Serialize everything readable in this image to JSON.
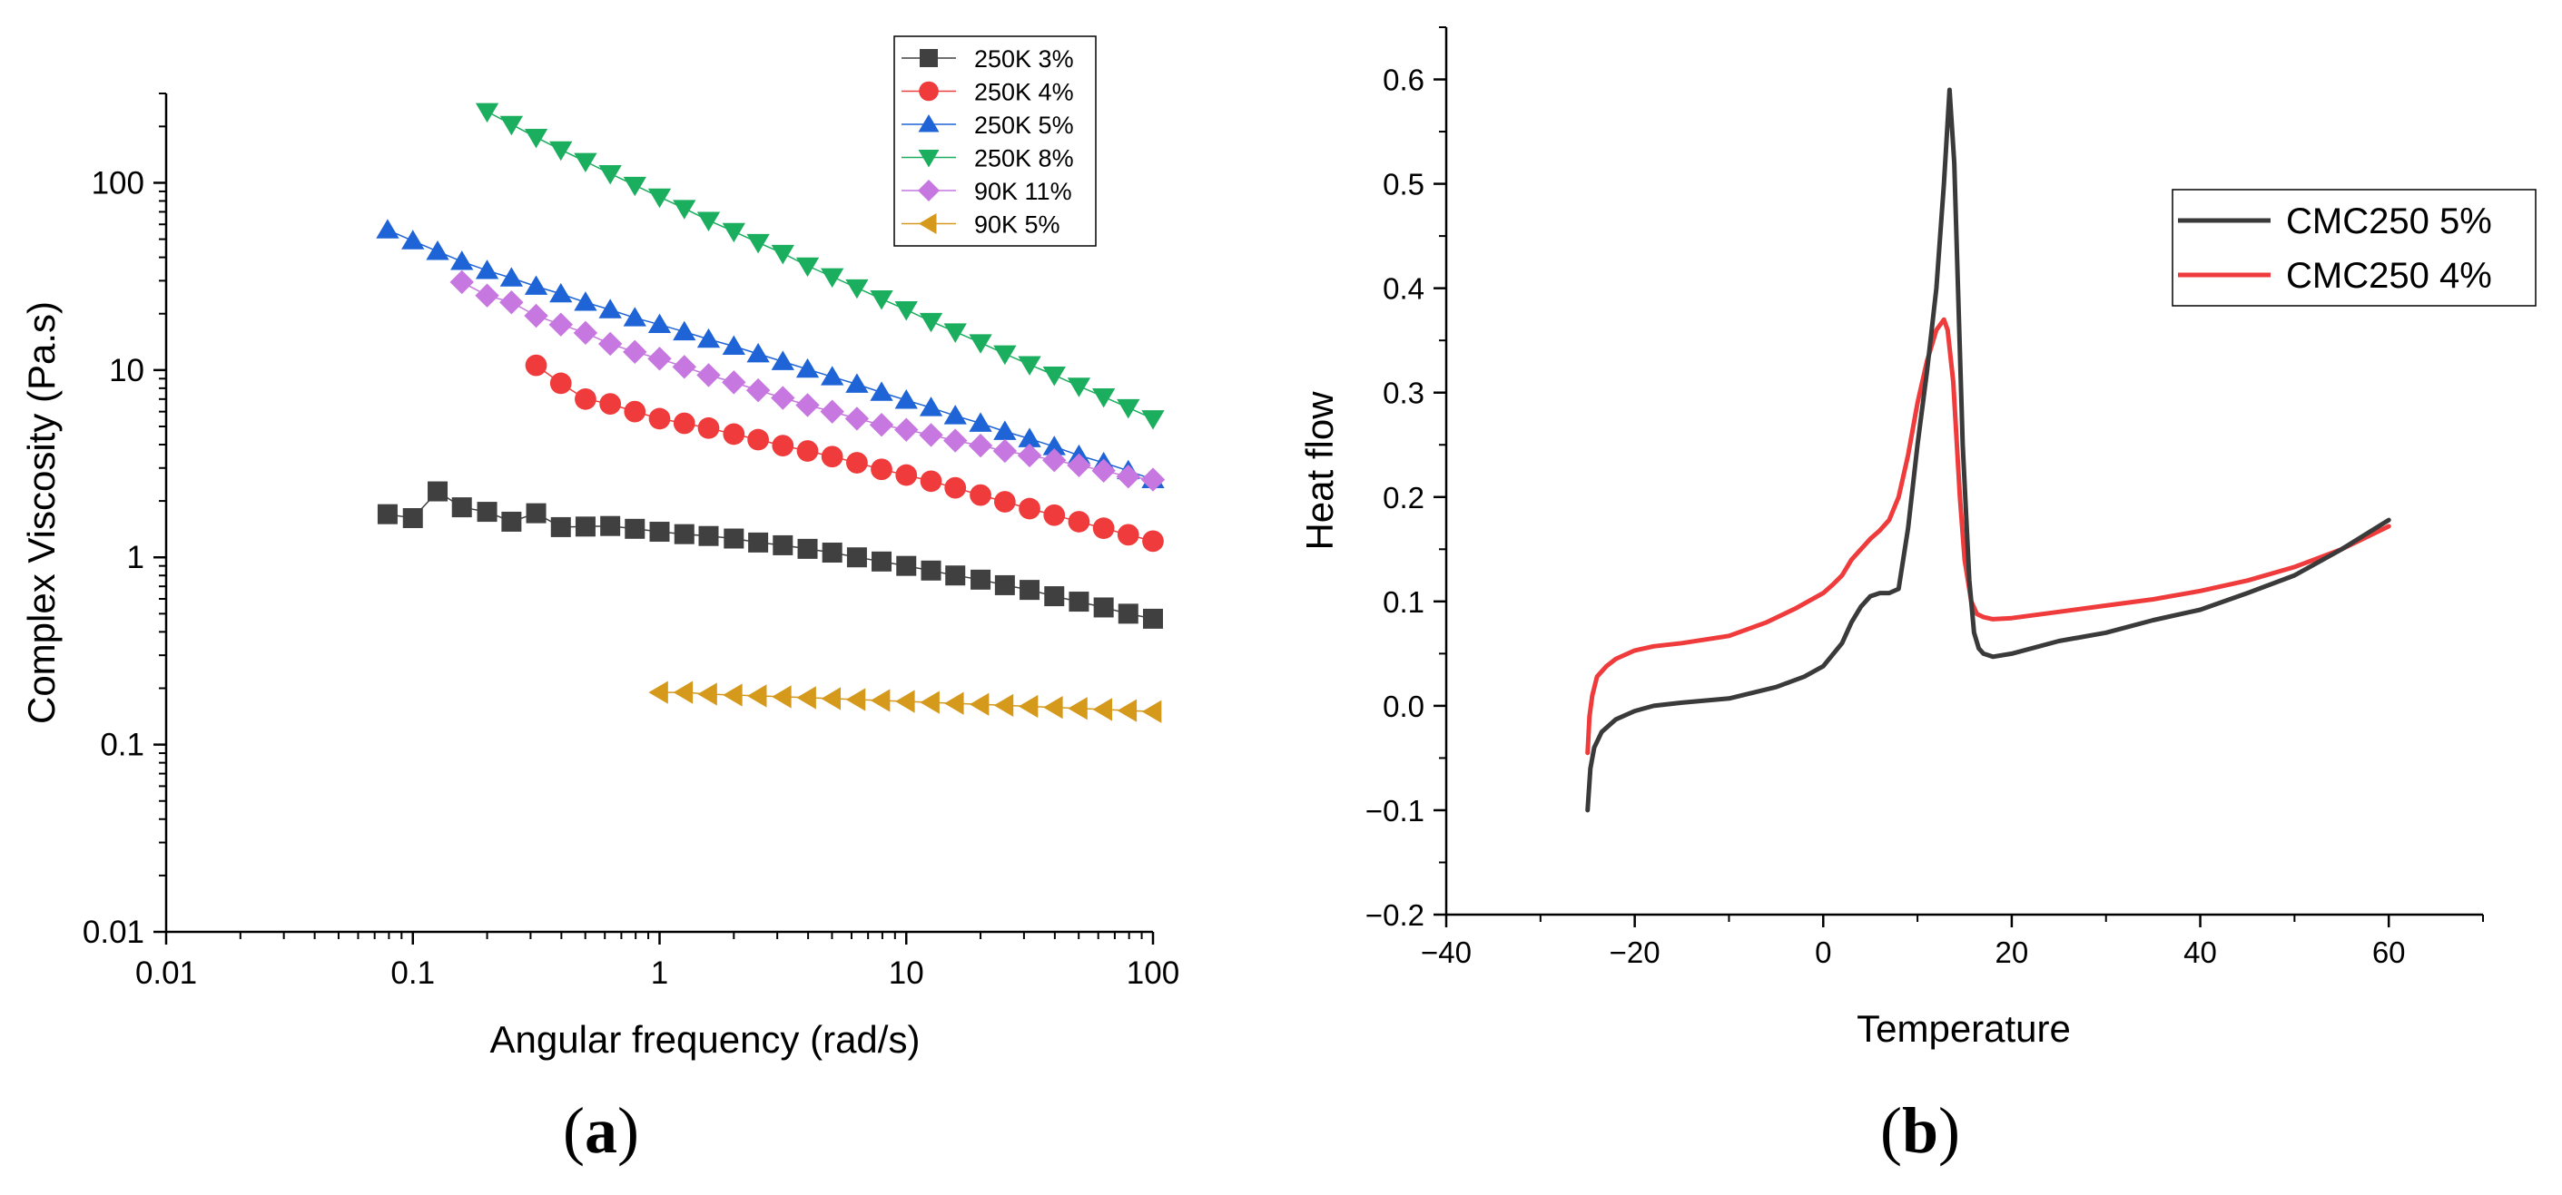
{
  "figure": {
    "label_a": "a",
    "label_b": "b"
  },
  "chart_data": [
    {
      "type": "scatter",
      "panel": "a",
      "xlabel": "Angular frequency (rad/s)",
      "ylabel": "Complex Viscosity (Pa.s)",
      "xscale": "log",
      "yscale": "log",
      "xlim": [
        0.01,
        100
      ],
      "ylim": [
        0.01,
        300
      ],
      "xticks": [
        {
          "v": 0.01,
          "label": "0.01"
        },
        {
          "v": 0.1,
          "label": "0.1"
        },
        {
          "v": 1,
          "label": "1"
        },
        {
          "v": 10,
          "label": "10"
        },
        {
          "v": 100,
          "label": "100"
        }
      ],
      "yticks": [
        {
          "v": 0.01,
          "label": "0.01"
        },
        {
          "v": 0.1,
          "label": "0.1"
        },
        {
          "v": 1,
          "label": "1"
        },
        {
          "v": 10,
          "label": "10"
        },
        {
          "v": 100,
          "label": "100"
        }
      ],
      "legend_position": "top-right",
      "series": [
        {
          "name": "250K 3%",
          "color": "#404040",
          "marker": "square",
          "x": [
            0.079,
            0.1,
            0.126,
            0.158,
            0.2,
            0.251,
            0.316,
            0.398,
            0.501,
            0.631,
            0.794,
            1,
            1.26,
            1.58,
            2,
            2.51,
            3.16,
            3.98,
            5.01,
            6.31,
            7.94,
            10,
            12.6,
            15.8,
            20,
            25.1,
            31.6,
            39.8,
            50.1,
            63.1,
            79.4,
            100
          ],
          "y": [
            1.7,
            1.62,
            2.25,
            1.85,
            1.75,
            1.55,
            1.72,
            1.45,
            1.46,
            1.47,
            1.42,
            1.37,
            1.33,
            1.3,
            1.26,
            1.2,
            1.16,
            1.11,
            1.06,
            1.0,
            0.95,
            0.9,
            0.85,
            0.8,
            0.76,
            0.71,
            0.67,
            0.62,
            0.58,
            0.54,
            0.5,
            0.47
          ]
        },
        {
          "name": "250K 4%",
          "color": "#ef3b3b",
          "marker": "circle",
          "x": [
            0.316,
            0.398,
            0.501,
            0.631,
            0.794,
            1,
            1.26,
            1.58,
            2,
            2.51,
            3.16,
            3.98,
            5.01,
            6.31,
            7.94,
            10,
            12.6,
            15.8,
            20,
            25.1,
            31.6,
            39.8,
            50.1,
            63.1,
            79.4,
            100
          ],
          "y": [
            10.6,
            8.5,
            7.0,
            6.6,
            6.0,
            5.5,
            5.2,
            4.9,
            4.55,
            4.25,
            3.95,
            3.7,
            3.45,
            3.2,
            2.95,
            2.75,
            2.55,
            2.35,
            2.15,
            1.98,
            1.82,
            1.68,
            1.55,
            1.43,
            1.32,
            1.22
          ]
        },
        {
          "name": "250K 5%",
          "color": "#1f64d6",
          "marker": "triangle-up",
          "x": [
            0.079,
            0.1,
            0.126,
            0.158,
            0.2,
            0.251,
            0.316,
            0.398,
            0.501,
            0.631,
            0.794,
            1,
            1.26,
            1.58,
            2,
            2.51,
            3.16,
            3.98,
            5.01,
            6.31,
            7.94,
            10,
            12.6,
            15.8,
            20,
            25.1,
            31.6,
            39.8,
            50.1,
            63.1,
            79.4,
            100
          ],
          "y": [
            56,
            49,
            43,
            38,
            34,
            31,
            28,
            25.5,
            23,
            21,
            19,
            17.5,
            16,
            14.6,
            13.4,
            12.2,
            11.1,
            10.1,
            9.2,
            8.4,
            7.6,
            6.9,
            6.3,
            5.7,
            5.2,
            4.7,
            4.3,
            3.9,
            3.5,
            3.2,
            2.9,
            2.6
          ]
        },
        {
          "name": "250K 8%",
          "color": "#1aae5e",
          "marker": "triangle-down",
          "x": [
            0.2,
            0.251,
            0.316,
            0.398,
            0.501,
            0.631,
            0.794,
            1,
            1.26,
            1.58,
            2,
            2.51,
            3.16,
            3.98,
            5.01,
            6.31,
            7.94,
            10,
            12.6,
            15.8,
            20,
            25.1,
            31.6,
            39.8,
            50.1,
            63.1,
            79.4,
            100
          ],
          "y": [
            240,
            205,
            175,
            150,
            130,
            112,
            97,
            84,
            73,
            63,
            55,
            48,
            42,
            36,
            31.5,
            27.5,
            24,
            21,
            18.2,
            16,
            14,
            12.2,
            10.7,
            9.4,
            8.2,
            7.2,
            6.3,
            5.5
          ]
        },
        {
          "name": "90K 11%",
          "color": "#c777e0",
          "marker": "diamond",
          "x": [
            0.158,
            0.2,
            0.251,
            0.316,
            0.398,
            0.501,
            0.631,
            0.794,
            1,
            1.26,
            1.58,
            2,
            2.51,
            3.16,
            3.98,
            5.01,
            6.31,
            7.94,
            10,
            12.6,
            15.8,
            20,
            25.1,
            31.6,
            39.8,
            50.1,
            63.1,
            79.4,
            100
          ],
          "y": [
            29.5,
            25,
            23,
            19.5,
            17.5,
            15.8,
            13.8,
            12.5,
            11.5,
            10.4,
            9.4,
            8.6,
            7.8,
            7.1,
            6.5,
            6.0,
            5.5,
            5.1,
            4.8,
            4.5,
            4.2,
            3.95,
            3.7,
            3.5,
            3.3,
            3.1,
            2.9,
            2.7,
            2.6
          ]
        },
        {
          "name": "90K 5%",
          "color": "#d59a1c",
          "marker": "triangle-left",
          "x": [
            1,
            1.26,
            1.58,
            2,
            2.51,
            3.16,
            3.98,
            5.01,
            6.31,
            7.94,
            10,
            12.6,
            15.8,
            20,
            25.1,
            31.6,
            39.8,
            50.1,
            63.1,
            79.4,
            100
          ],
          "y": [
            0.19,
            0.19,
            0.186,
            0.184,
            0.182,
            0.18,
            0.178,
            0.176,
            0.174,
            0.172,
            0.17,
            0.168,
            0.166,
            0.164,
            0.162,
            0.16,
            0.158,
            0.156,
            0.154,
            0.152,
            0.15
          ]
        }
      ]
    },
    {
      "type": "line",
      "panel": "b",
      "xlabel": "Temperature",
      "ylabel": "Heat flow",
      "xlim": [
        -40,
        70
      ],
      "ylim": [
        -0.2,
        0.65
      ],
      "xticks": [
        {
          "v": -40,
          "label": "−40"
        },
        {
          "v": -20,
          "label": "−20"
        },
        {
          "v": 0,
          "label": "0"
        },
        {
          "v": 20,
          "label": "20"
        },
        {
          "v": 40,
          "label": "40"
        },
        {
          "v": 60,
          "label": "60"
        }
      ],
      "yticks": [
        {
          "v": -0.2,
          "label": "−0.2"
        },
        {
          "v": -0.1,
          "label": "−0.1"
        },
        {
          "v": 0.0,
          "label": "0.0"
        },
        {
          "v": 0.1,
          "label": "0.1"
        },
        {
          "v": 0.2,
          "label": "0.2"
        },
        {
          "v": 0.3,
          "label": "0.3"
        },
        {
          "v": 0.4,
          "label": "0.4"
        },
        {
          "v": 0.5,
          "label": "0.5"
        },
        {
          "v": 0.6,
          "label": "0.6"
        }
      ],
      "legend_position": "top-right",
      "series": [
        {
          "name": "CMC250 5%",
          "color": "#3a3a3a",
          "x": [
            -25,
            -24.7,
            -24.3,
            -23.5,
            -22,
            -20,
            -18,
            -15,
            -10,
            -5,
            -2,
            0,
            2,
            3,
            4,
            5,
            6,
            7,
            8,
            9,
            10,
            11,
            12,
            12.8,
            13.4,
            13.9,
            14.3,
            14.8,
            15.5,
            16,
            16.5,
            17,
            18,
            20,
            25,
            30,
            35,
            40,
            45,
            50,
            55,
            60
          ],
          "y": [
            -0.1,
            -0.06,
            -0.04,
            -0.025,
            -0.013,
            -0.005,
            0.0,
            0.003,
            0.007,
            0.018,
            0.028,
            0.038,
            0.06,
            0.08,
            0.095,
            0.105,
            0.108,
            0.108,
            0.112,
            0.17,
            0.25,
            0.32,
            0.4,
            0.5,
            0.59,
            0.52,
            0.4,
            0.25,
            0.12,
            0.07,
            0.055,
            0.05,
            0.047,
            0.05,
            0.062,
            0.07,
            0.082,
            0.092,
            0.108,
            0.125,
            0.15,
            0.178
          ]
        },
        {
          "name": "CMC250 4%",
          "color": "#ef3b3b",
          "x": [
            -25,
            -24.8,
            -24.5,
            -24,
            -23,
            -22,
            -20,
            -18,
            -15,
            -10,
            -6,
            -3,
            0,
            1,
            2,
            3,
            4,
            5,
            6,
            7,
            8,
            9,
            10,
            11,
            12,
            12.8,
            13.2,
            13.8,
            14.5,
            15,
            15.7,
            16.3,
            17,
            18,
            20,
            25,
            30,
            35,
            40,
            45,
            50,
            55,
            60
          ],
          "y": [
            -0.045,
            -0.01,
            0.01,
            0.028,
            0.038,
            0.045,
            0.053,
            0.057,
            0.06,
            0.067,
            0.08,
            0.093,
            0.108,
            0.116,
            0.125,
            0.14,
            0.15,
            0.16,
            0.168,
            0.178,
            0.2,
            0.24,
            0.29,
            0.33,
            0.36,
            0.37,
            0.36,
            0.31,
            0.2,
            0.14,
            0.1,
            0.088,
            0.085,
            0.083,
            0.084,
            0.09,
            0.096,
            0.102,
            0.11,
            0.12,
            0.133,
            0.15,
            0.172
          ]
        }
      ]
    }
  ]
}
